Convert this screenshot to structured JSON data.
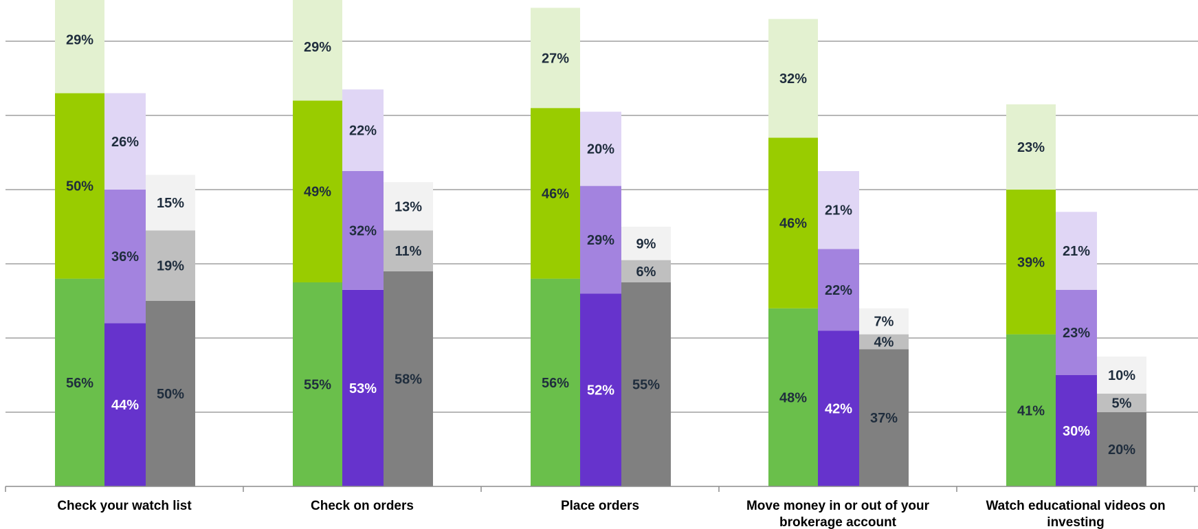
{
  "chart_data": {
    "type": "bar",
    "stacked": true,
    "grouped": true,
    "title": "",
    "xlabel": "",
    "ylabel": "",
    "ylim": [
      0,
      130
    ],
    "grid": true,
    "legend": "none",
    "categories": [
      "Check your watch list",
      "Check on orders",
      "Place orders",
      "Move money in or out of your brokerage account",
      "Watch educational videos on investing"
    ],
    "groups": [
      {
        "colors": [
          "#6abf4b",
          "#99cc00",
          "#e3f1d0"
        ],
        "label_colors": [
          "#1f2d3d",
          "#1f2d3d",
          "#1f2d3d"
        ],
        "values": [
          [
            56,
            50,
            29
          ],
          [
            55,
            49,
            29
          ],
          [
            56,
            46,
            27
          ],
          [
            48,
            46,
            32
          ],
          [
            41,
            39,
            23
          ]
        ]
      },
      {
        "colors": [
          "#6633cc",
          "#a383df",
          "#e0d6f5"
        ],
        "label_colors": [
          "#ffffff",
          "#1f2d3d",
          "#1f2d3d"
        ],
        "values": [
          [
            44,
            36,
            26
          ],
          [
            53,
            32,
            22
          ],
          [
            52,
            29,
            20
          ],
          [
            42,
            22,
            21
          ],
          [
            30,
            23,
            21
          ]
        ]
      },
      {
        "colors": [
          "#808080",
          "#bfbfbf",
          "#f2f2f2"
        ],
        "label_colors": [
          "#1f2d3d",
          "#1f2d3d",
          "#1f2d3d"
        ],
        "values": [
          [
            50,
            19,
            15
          ],
          [
            58,
            11,
            13
          ],
          [
            55,
            6,
            9
          ],
          [
            37,
            4,
            7
          ],
          [
            20,
            5,
            10
          ]
        ]
      }
    ]
  }
}
